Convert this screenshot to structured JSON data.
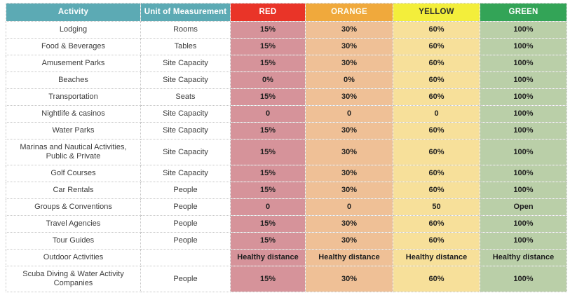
{
  "colors": {
    "header_teal": "#5caab4",
    "header_red": "#e93428",
    "header_orange": "#f0a93c",
    "header_yellow": "#f3ee3b",
    "header_green": "#33a457",
    "body_red": "#d6939a",
    "body_orange": "#efc096",
    "body_yellow": "#f7e09a",
    "body_green": "#bacfa8"
  },
  "chart_data": {
    "type": "table",
    "columns": [
      {
        "key": "activity",
        "label": "Activity"
      },
      {
        "key": "unit",
        "label": "Unit of Measurement"
      },
      {
        "key": "red",
        "label": "RED"
      },
      {
        "key": "orange",
        "label": "ORANGE"
      },
      {
        "key": "yellow",
        "label": "YELLOW"
      },
      {
        "key": "green",
        "label": "GREEN"
      }
    ],
    "rows": [
      {
        "activity": "Lodging",
        "unit": "Rooms",
        "red": "15%",
        "orange": "30%",
        "yellow": "60%",
        "green": "100%"
      },
      {
        "activity": "Food & Beverages",
        "unit": "Tables",
        "red": "15%",
        "orange": "30%",
        "yellow": "60%",
        "green": "100%"
      },
      {
        "activity": "Amusement Parks",
        "unit": "Site Capacity",
        "red": "15%",
        "orange": "30%",
        "yellow": "60%",
        "green": "100%"
      },
      {
        "activity": "Beaches",
        "unit": "Site Capacity",
        "red": "0%",
        "orange": "0%",
        "yellow": "60%",
        "green": "100%"
      },
      {
        "activity": "Transportation",
        "unit": "Seats",
        "red": "15%",
        "orange": "30%",
        "yellow": "60%",
        "green": "100%"
      },
      {
        "activity": "Nightlife & casinos",
        "unit": "Site Capacity",
        "red": "0",
        "orange": "0",
        "yellow": "0",
        "green": "100%"
      },
      {
        "activity": "Water Parks",
        "unit": "Site Capacity",
        "red": "15%",
        "orange": "30%",
        "yellow": "60%",
        "green": "100%"
      },
      {
        "activity": "Marinas and Nautical Activities, Public & Private",
        "unit": "Site Capacity",
        "red": "15%",
        "orange": "30%",
        "yellow": "60%",
        "green": "100%"
      },
      {
        "activity": "Golf Courses",
        "unit": "Site Capacity",
        "red": "15%",
        "orange": "30%",
        "yellow": "60%",
        "green": "100%"
      },
      {
        "activity": "Car Rentals",
        "unit": "People",
        "red": "15%",
        "orange": "30%",
        "yellow": "60%",
        "green": "100%"
      },
      {
        "activity": "Groups & Conventions",
        "unit": "People",
        "red": "0",
        "orange": "0",
        "yellow": "50",
        "green": "Open"
      },
      {
        "activity": "Travel Agencies",
        "unit": "People",
        "red": "15%",
        "orange": "30%",
        "yellow": "60%",
        "green": "100%"
      },
      {
        "activity": "Tour Guides",
        "unit": "People",
        "red": "15%",
        "orange": "30%",
        "yellow": "60%",
        "green": "100%"
      },
      {
        "activity": "Outdoor Activities",
        "unit": "",
        "red": "Healthy distance",
        "orange": "Healthy distance",
        "yellow": "Healthy distance",
        "green": "Healthy distance"
      },
      {
        "activity": "Scuba Diving & Water Activity Companies",
        "unit": "People",
        "red": "15%",
        "orange": "30%",
        "yellow": "60%",
        "green": "100%"
      }
    ]
  }
}
